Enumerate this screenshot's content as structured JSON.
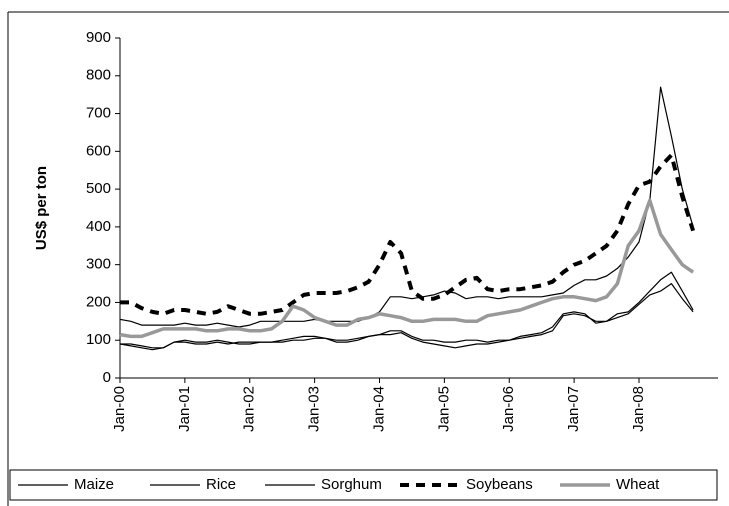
{
  "chart_data": {
    "type": "line",
    "ylabel": "US$ per ton",
    "categories": [
      "Jan-00",
      null,
      null,
      null,
      null,
      null,
      "Jan-01",
      null,
      null,
      null,
      null,
      null,
      "Jan-02",
      null,
      null,
      null,
      null,
      null,
      "Jan-03",
      null,
      null,
      null,
      null,
      null,
      "Jan-04",
      null,
      null,
      null,
      null,
      null,
      "Jan-05",
      null,
      null,
      null,
      null,
      null,
      "Jan-06",
      null,
      null,
      null,
      null,
      null,
      "Jan-07",
      null,
      null,
      null,
      null,
      null,
      "Jan-08",
      null,
      null,
      null,
      null,
      null
    ],
    "series": [
      {
        "name": "Maize",
        "color": "#000000",
        "style": "thin",
        "values": [
          90,
          90,
          85,
          80,
          80,
          95,
          95,
          90,
          90,
          95,
          90,
          95,
          95,
          95,
          95,
          95,
          100,
          100,
          105,
          105,
          100,
          100,
          105,
          110,
          115,
          125,
          125,
          110,
          100,
          100,
          95,
          95,
          100,
          100,
          95,
          100,
          100,
          105,
          110,
          115,
          125,
          165,
          170,
          165,
          150,
          150,
          160,
          170,
          195,
          220,
          230,
          250,
          210,
          175
        ]
      },
      {
        "name": "Rice",
        "color": "#000000",
        "style": "thin",
        "values": [
          155,
          150,
          140,
          140,
          140,
          140,
          145,
          140,
          140,
          145,
          140,
          135,
          140,
          150,
          150,
          150,
          150,
          150,
          155,
          150,
          150,
          150,
          150,
          160,
          175,
          215,
          215,
          210,
          215,
          220,
          230,
          225,
          210,
          215,
          215,
          210,
          215,
          215,
          215,
          215,
          220,
          225,
          245,
          260,
          260,
          270,
          290,
          320,
          360,
          470,
          770,
          640,
          500,
          400
        ]
      },
      {
        "name": "Sorghum",
        "color": "#000000",
        "style": "thin",
        "values": [
          90,
          85,
          80,
          75,
          80,
          95,
          100,
          95,
          95,
          100,
          95,
          90,
          90,
          95,
          95,
          100,
          105,
          110,
          110,
          105,
          95,
          95,
          100,
          110,
          115,
          115,
          120,
          105,
          95,
          90,
          85,
          80,
          85,
          90,
          90,
          95,
          100,
          110,
          115,
          120,
          135,
          170,
          175,
          170,
          145,
          150,
          170,
          175,
          200,
          230,
          260,
          280,
          230,
          180
        ]
      },
      {
        "name": "Soybeans",
        "color": "#000000",
        "style": "dashed",
        "values": [
          200,
          200,
          185,
          175,
          170,
          180,
          180,
          175,
          170,
          175,
          190,
          180,
          170,
          170,
          175,
          180,
          200,
          220,
          225,
          225,
          225,
          230,
          240,
          255,
          300,
          360,
          330,
          230,
          210,
          210,
          220,
          240,
          260,
          265,
          235,
          230,
          235,
          235,
          240,
          245,
          255,
          280,
          300,
          310,
          330,
          350,
          390,
          460,
          510,
          520,
          560,
          590,
          480,
          390
        ]
      },
      {
        "name": "Wheat",
        "color": "#999999",
        "style": "thick",
        "values": [
          115,
          110,
          110,
          120,
          130,
          130,
          130,
          130,
          125,
          125,
          130,
          130,
          125,
          125,
          130,
          150,
          190,
          180,
          160,
          150,
          140,
          140,
          155,
          160,
          170,
          165,
          160,
          150,
          150,
          155,
          155,
          155,
          150,
          150,
          165,
          170,
          175,
          180,
          190,
          200,
          210,
          215,
          215,
          210,
          205,
          215,
          250,
          350,
          390,
          470,
          380,
          340,
          300,
          280
        ]
      }
    ],
    "ylim": [
      0,
      900
    ],
    "yticks": [
      0,
      100,
      200,
      300,
      400,
      500,
      600,
      700,
      800,
      900
    ],
    "legend": "bottom"
  }
}
